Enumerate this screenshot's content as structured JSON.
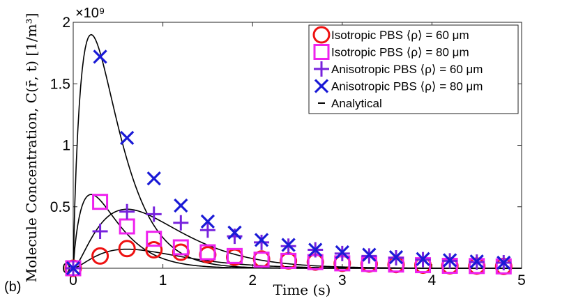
{
  "panel_label": "(b)",
  "chart_data": {
    "type": "line",
    "title": "",
    "xlabel": "Time (s)",
    "ylabel": "Molecule Concentration, C(r̄, t) [1/m³]",
    "xlim": [
      0,
      5
    ],
    "ylim": [
      0,
      2
    ],
    "y_multiplier_label": "×10⁹",
    "xticks": [
      0,
      1,
      2,
      3,
      4,
      5
    ],
    "yticks": [
      0,
      0.5,
      1,
      1.5,
      2
    ],
    "xtick_labels": [
      "0",
      "1",
      "2",
      "3",
      "4",
      "5"
    ],
    "ytick_labels": [
      "0",
      "0.5",
      "1",
      "1.5",
      "2"
    ],
    "grid": false,
    "legend_position": "top-right",
    "series": [
      {
        "name": "Isotropic PBS ⟨ρ⟩ = 60 μm",
        "marker": "circle",
        "color": "#ee1111",
        "x": [
          0,
          0.3,
          0.6,
          0.9,
          1.2,
          1.5,
          1.8,
          2.1,
          2.4,
          2.7,
          3.0,
          3.3,
          3.6,
          3.9,
          4.2,
          4.5,
          4.8
        ],
        "y": [
          0,
          0.1,
          0.16,
          0.15,
          0.13,
          0.11,
          0.09,
          0.075,
          0.06,
          0.05,
          0.04,
          0.035,
          0.03,
          0.025,
          0.02,
          0.018,
          0.015
        ]
      },
      {
        "name": "Isotropic PBS ⟨ρ⟩ = 80 μm",
        "marker": "square",
        "color": "#ee22ee",
        "x": [
          0,
          0.3,
          0.6,
          0.9,
          1.2,
          1.5,
          1.8,
          2.1,
          2.4,
          2.7,
          3.0,
          3.3,
          3.6,
          3.9,
          4.2,
          4.5,
          4.8
        ],
        "y": [
          0,
          0.54,
          0.34,
          0.24,
          0.17,
          0.13,
          0.1,
          0.07,
          0.06,
          0.05,
          0.04,
          0.035,
          0.03,
          0.025,
          0.02,
          0.018,
          0.015
        ]
      },
      {
        "name": "Anisotropic PBS ⟨ρ⟩ = 60 μm",
        "marker": "plus",
        "color": "#7722dd",
        "x": [
          0,
          0.3,
          0.6,
          0.9,
          1.2,
          1.5,
          1.8,
          2.1,
          2.4,
          2.7,
          3.0,
          3.3,
          3.6,
          3.9,
          4.2,
          4.5,
          4.8
        ],
        "y": [
          0,
          0.3,
          0.46,
          0.44,
          0.37,
          0.31,
          0.26,
          0.21,
          0.18,
          0.15,
          0.12,
          0.1,
          0.085,
          0.07,
          0.06,
          0.05,
          0.045
        ]
      },
      {
        "name": "Anisotropic PBS ⟨ρ⟩ = 80 μm",
        "marker": "x",
        "color": "#1a1ad6",
        "x": [
          0,
          0.3,
          0.6,
          0.9,
          1.2,
          1.5,
          1.8,
          2.1,
          2.4,
          2.7,
          3.0,
          3.3,
          3.6,
          3.9,
          4.2,
          4.5,
          4.8
        ],
        "y": [
          0,
          1.72,
          1.06,
          0.73,
          0.51,
          0.38,
          0.29,
          0.23,
          0.19,
          0.15,
          0.13,
          0.11,
          0.09,
          0.075,
          0.065,
          0.055,
          0.045
        ]
      }
    ],
    "analytical": {
      "name": "Analytical",
      "color": "#000000",
      "curves": [
        {
          "peak_x": 0.2,
          "peak_y": 1.9
        },
        {
          "peak_x": 0.2,
          "peak_y": 0.6
        },
        {
          "peak_x": 0.6,
          "peak_y": 0.48
        },
        {
          "peak_x": 0.6,
          "peak_y": 0.155
        }
      ]
    }
  }
}
